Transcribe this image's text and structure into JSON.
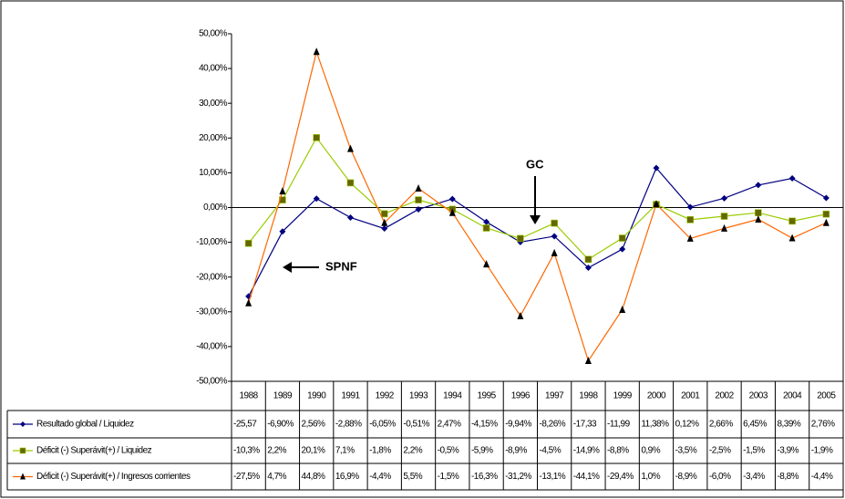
{
  "chart_data": {
    "type": "line",
    "categories": [
      "1988",
      "1989",
      "1990",
      "1991",
      "1992",
      "1993",
      "1994",
      "1995",
      "1996",
      "1997",
      "1998",
      "1999",
      "2000",
      "2001",
      "2002",
      "2003",
      "2004",
      "2005"
    ],
    "ylim": [
      -50,
      50
    ],
    "yticks": [
      {
        "value": -50,
        "label": "-50,00%"
      },
      {
        "value": -40,
        "label": "-40,00%"
      },
      {
        "value": -30,
        "label": "-30,00%"
      },
      {
        "value": -20,
        "label": "-20,00%"
      },
      {
        "value": -10,
        "label": "-10,00%"
      },
      {
        "value": 0,
        "label": "0,00%"
      },
      {
        "value": 10,
        "label": "10,00%"
      },
      {
        "value": 20,
        "label": "20,00%"
      },
      {
        "value": 30,
        "label": "30,00%"
      },
      {
        "value": 40,
        "label": "40,00%"
      },
      {
        "value": 50,
        "label": "50,00%"
      }
    ],
    "series": [
      {
        "name": "Resultado global / Liquidez",
        "color": "#000080",
        "marker": "diamond",
        "marker_color": "#000080",
        "values": [
          -25.57,
          -6.9,
          2.56,
          -2.88,
          -6.05,
          -0.51,
          2.47,
          -4.15,
          -9.94,
          -8.26,
          -17.33,
          -11.99,
          11.38,
          0.12,
          2.66,
          6.45,
          8.39,
          2.76
        ],
        "value_labels": [
          "-25,57",
          "-6,90%",
          "2,56%",
          "-2,88%",
          "-6,05%",
          "-0,51%",
          "2,47%",
          "-4,15%",
          "-9,94%",
          "-8,26%",
          "-17,33",
          "-11,99",
          "11,38%",
          "0,12%",
          "2,66%",
          "6,45%",
          "8,39%",
          "2,76%"
        ]
      },
      {
        "name": "Déficit (-) Superávit(+) / Liquidez",
        "color": "#99cc00",
        "marker": "square",
        "marker_color": "#666600",
        "values": [
          -10.3,
          2.2,
          20.1,
          7.1,
          -1.8,
          2.2,
          -0.5,
          -5.9,
          -8.9,
          -4.5,
          -14.9,
          -8.8,
          0.9,
          -3.5,
          -2.5,
          -1.5,
          -3.9,
          -1.9
        ],
        "value_labels": [
          "-10,3%",
          "2,2%",
          "20,1%",
          "7,1%",
          "-1,8%",
          "2,2%",
          "-0,5%",
          "-5,9%",
          "-8,9%",
          "-4,5%",
          "-14,9%",
          "-8,8%",
          "0,9%",
          "-3,5%",
          "-2,5%",
          "-1,5%",
          "-3,9%",
          "-1,9%"
        ]
      },
      {
        "name": "Déficit (-) Superávit(+) / Ingresos corrientes",
        "color": "#ff6600",
        "marker": "triangle",
        "marker_color": "#000000",
        "values": [
          -27.5,
          4.7,
          44.8,
          16.9,
          -4.4,
          5.5,
          -1.5,
          -16.3,
          -31.2,
          -13.1,
          -44.1,
          -29.4,
          1.0,
          -8.9,
          -6.0,
          -3.4,
          -8.8,
          -4.4
        ],
        "value_labels": [
          "-27,5%",
          "4,7%",
          "44,8%",
          "16,9%",
          "-4,4%",
          "5,5%",
          "-1,5%",
          "-16,3%",
          "-31,2%",
          "-13,1%",
          "-44,1%",
          "-29,4%",
          "1,0%",
          "-8,9%",
          "-6,0%",
          "-3,4%",
          "-8,8%",
          "-4,4%"
        ]
      }
    ],
    "annotations": [
      "GC",
      "SPNF"
    ]
  }
}
